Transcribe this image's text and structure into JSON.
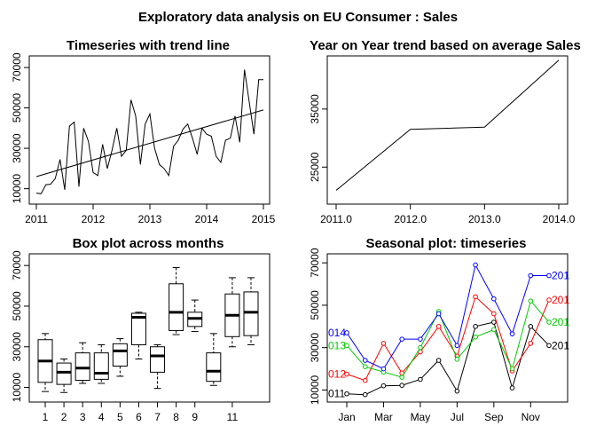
{
  "title": "Exploratory data analysis on EU Consumer : Sales",
  "chart_data": [
    {
      "id": "timeseries",
      "type": "line",
      "title": "Timeseries with trend line",
      "xlim": [
        2011,
        2015
      ],
      "ylim": [
        5000,
        74000
      ],
      "xticks": [
        {
          "v": 2011,
          "label": "2011"
        },
        {
          "v": 2012,
          "label": "2012"
        },
        {
          "v": 2013,
          "label": "2013"
        },
        {
          "v": 2014,
          "label": "2014"
        },
        {
          "v": 2015,
          "label": "2015"
        }
      ],
      "yticks": [
        {
          "v": 10000,
          "label": "10000"
        },
        {
          "v": 30000,
          "label": "30000"
        },
        {
          "v": 50000,
          "label": "50000"
        },
        {
          "v": 70000,
          "label": "70000"
        }
      ],
      "series": [
        {
          "start": 2011,
          "step": 0.083333,
          "values": [
            7800,
            7500,
            12000,
            12200,
            15000,
            24500,
            9500,
            41000,
            43000,
            11000,
            40000,
            33500,
            18000,
            16500,
            32000,
            20000,
            29000,
            40000,
            26000,
            29000,
            54000,
            46000,
            22000,
            42000,
            47000,
            30000,
            22000,
            20000,
            16500,
            31000,
            34000,
            39500,
            42000,
            35000,
            27000,
            40000,
            37000,
            36000,
            26000,
            23000,
            34000,
            35000,
            46000,
            33000,
            69000,
            53000,
            37000,
            64000,
            64000
          ]
        }
      ],
      "trend": {
        "x": [
          2011,
          2015
        ],
        "y": [
          16000,
          49000
        ]
      }
    },
    {
      "id": "yoy",
      "type": "line",
      "title": "Year on Year trend based on average Sales",
      "xlim": [
        2011,
        2014
      ],
      "ylim": [
        20000,
        44000
      ],
      "xticks": [
        {
          "v": 2011,
          "label": "2011.0"
        },
        {
          "v": 2012,
          "label": "2012.0"
        },
        {
          "v": 2013,
          "label": "2013.0"
        },
        {
          "v": 2014,
          "label": "2014.0"
        }
      ],
      "yticks": [
        {
          "v": 25000,
          "label": "25000"
        },
        {
          "v": 35000,
          "label": "35000"
        }
      ],
      "series": [
        {
          "x": [
            2011,
            2012,
            2013,
            2014
          ],
          "values": [
            21000,
            31500,
            31900,
            43400
          ]
        }
      ]
    },
    {
      "id": "boxplot",
      "type": "box",
      "title": "Box plot across months",
      "ylim": [
        5000,
        74000
      ],
      "xticks": [
        {
          "v": 1,
          "label": "1"
        },
        {
          "v": 2,
          "label": "2"
        },
        {
          "v": 3,
          "label": "3"
        },
        {
          "v": 4,
          "label": "4"
        },
        {
          "v": 5,
          "label": "5"
        },
        {
          "v": 6,
          "label": "6"
        },
        {
          "v": 7,
          "label": "7"
        },
        {
          "v": 8,
          "label": "8"
        },
        {
          "v": 9,
          "label": "9"
        },
        {
          "v": 11,
          "label": "11"
        }
      ],
      "yticks": [
        {
          "v": 10000,
          "label": "10000"
        },
        {
          "v": 30000,
          "label": "30000"
        },
        {
          "v": 50000,
          "label": "50000"
        },
        {
          "v": 70000,
          "label": "70000"
        }
      ],
      "boxes": [
        {
          "month": 1,
          "min": 8000,
          "q1": 12500,
          "median": 23000,
          "q3": 33500,
          "max": 36500
        },
        {
          "month": 2,
          "min": 7500,
          "q1": 11500,
          "median": 17500,
          "q3": 22000,
          "max": 24000
        },
        {
          "month": 3,
          "min": 12000,
          "q1": 13500,
          "median": 19500,
          "q3": 27000,
          "max": 32000
        },
        {
          "month": 4,
          "min": 12000,
          "q1": 14000,
          "median": 17000,
          "q3": 27000,
          "max": 31000
        },
        {
          "month": 5,
          "min": 15500,
          "q1": 20500,
          "median": 28000,
          "q3": 31500,
          "max": 34000
        },
        {
          "month": 6,
          "min": 24000,
          "q1": 31000,
          "median": 44500,
          "q3": 46500,
          "max": 47000
        },
        {
          "month": 7,
          "min": 9500,
          "q1": 17500,
          "median": 25500,
          "q3": 30000,
          "max": 31000
        },
        {
          "month": 8,
          "min": 36000,
          "q1": 38000,
          "median": 47000,
          "q3": 61000,
          "max": 69000
        },
        {
          "month": 9,
          "min": 37500,
          "q1": 40000,
          "median": 44000,
          "q3": 47000,
          "max": 53000
        },
        {
          "month": 10,
          "min": 11000,
          "q1": 13000,
          "median": 18000,
          "q3": 27000,
          "max": 36500
        },
        {
          "month": 11,
          "min": 30000,
          "q1": 35000,
          "median": 45500,
          "q3": 56000,
          "max": 64000
        },
        {
          "month": 12,
          "min": 31000,
          "q1": 35500,
          "median": 47000,
          "q3": 57000,
          "max": 64000
        }
      ]
    },
    {
      "id": "seasonal",
      "type": "line",
      "title": "Seasonal plot: timeseries",
      "ylim": [
        6000,
        73000
      ],
      "xticks": [
        {
          "v": 1,
          "label": "Jan"
        },
        {
          "v": 3,
          "label": "Mar"
        },
        {
          "v": 5,
          "label": "May"
        },
        {
          "v": 7,
          "label": "Jul"
        },
        {
          "v": 9,
          "label": "Sep"
        },
        {
          "v": 11,
          "label": "Nov"
        }
      ],
      "yticks": [
        {
          "v": 10000,
          "label": "10000"
        },
        {
          "v": 30000,
          "label": "30000"
        },
        {
          "v": 50000,
          "label": "50000"
        },
        {
          "v": 70000,
          "label": "70000"
        }
      ],
      "series": [
        {
          "left_label": "011",
          "right_label": "201",
          "color": "#000000",
          "values": [
            8200,
            7800,
            12000,
            12200,
            15000,
            24000,
            9500,
            40000,
            42000,
            11000,
            40000,
            31000
          ]
        },
        {
          "left_label": "012",
          "right_label": "201",
          "color": "#ff0000",
          "values": [
            17500,
            14500,
            32000,
            18000,
            28000,
            40000,
            26000,
            54000,
            46000,
            19000,
            32000,
            52500
          ]
        },
        {
          "left_label": "013",
          "right_label": "201",
          "color": "#00cc00",
          "values": [
            31000,
            21000,
            18500,
            16000,
            30000,
            47000,
            24500,
            35000,
            38500,
            20000,
            52000,
            42000
          ]
        },
        {
          "left_label": "014",
          "right_label": "201",
          "color": "#0000ff",
          "values": [
            37000,
            24000,
            20000,
            34000,
            34000,
            46000,
            31000,
            69000,
            53000,
            36500,
            64000,
            64000
          ]
        }
      ]
    }
  ]
}
